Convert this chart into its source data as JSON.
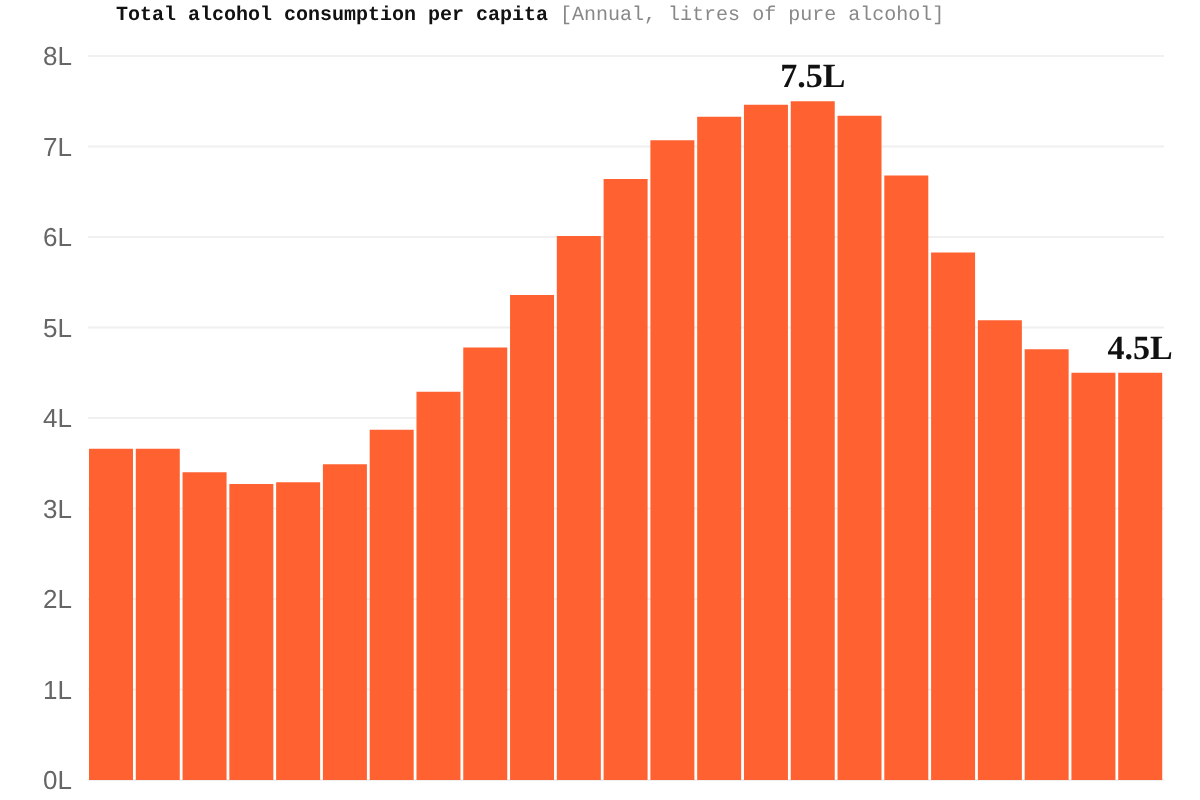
{
  "chart_data": {
    "type": "bar",
    "title": "Total alcohol consumption per capita",
    "subtitle": "[Annual, litres of pure alcohol]",
    "categories": [
      null,
      null,
      null,
      null,
      null,
      null,
      null,
      null,
      null,
      null,
      null,
      null,
      null,
      null,
      null,
      null,
      null,
      null,
      null,
      null,
      null,
      null,
      null
    ],
    "values": [
      3.66,
      3.66,
      3.4,
      3.27,
      3.29,
      3.49,
      3.87,
      4.29,
      4.78,
      5.36,
      6.01,
      6.64,
      7.07,
      7.33,
      7.46,
      7.5,
      7.34,
      6.68,
      5.83,
      5.08,
      4.76,
      4.5,
      4.5
    ],
    "value_labels": [
      null,
      null,
      null,
      null,
      null,
      null,
      null,
      null,
      null,
      null,
      null,
      null,
      null,
      null,
      null,
      "7.5L",
      null,
      null,
      null,
      null,
      null,
      null,
      "4.5L"
    ],
    "color": "#ff6230",
    "ylim": [
      0,
      8
    ],
    "yticks": [
      {
        "value": 0,
        "label": "0L"
      },
      {
        "value": 1,
        "label": "1L"
      },
      {
        "value": 2,
        "label": "2L"
      },
      {
        "value": 3,
        "label": "3L"
      },
      {
        "value": 4,
        "label": "4L"
      },
      {
        "value": 5,
        "label": "5L"
      },
      {
        "value": 6,
        "label": "6L"
      },
      {
        "value": 7,
        "label": "7L"
      },
      {
        "value": 8,
        "label": "8L"
      }
    ],
    "grid": "y",
    "tick_labels": "y"
  }
}
